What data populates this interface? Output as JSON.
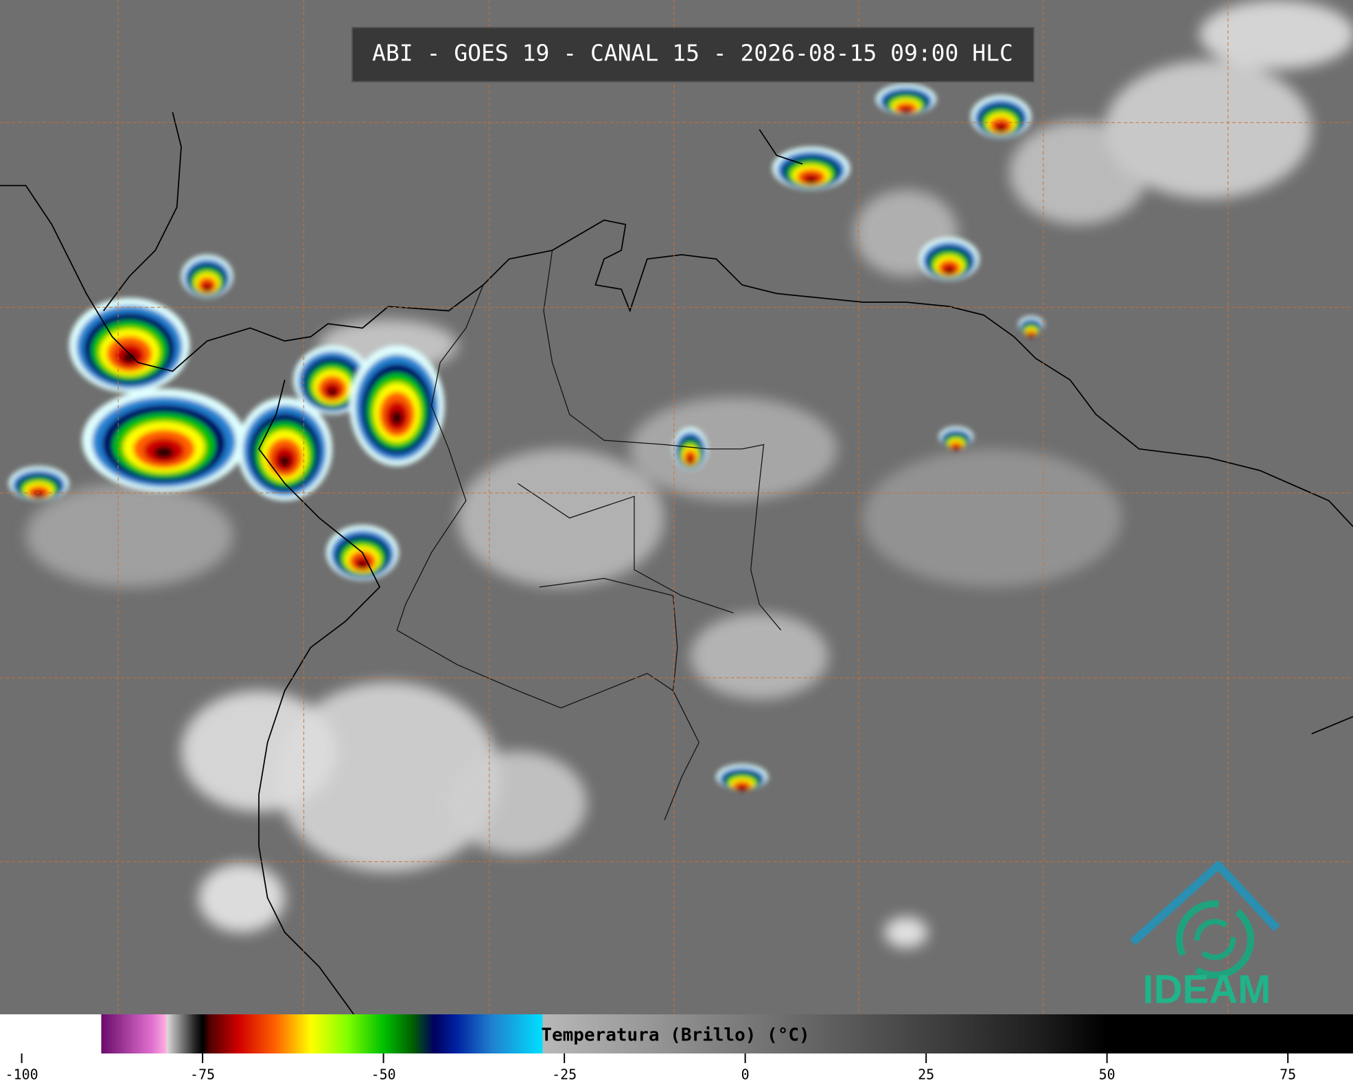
{
  "title": "ABI - GOES 19 - CANAL 15 - 2026-08-15 09:00 HLC",
  "logo": "IDEAM",
  "colorbar": {
    "label": "Temperatura (Brillo) (°C)",
    "xlim": [
      -103,
      84
    ],
    "ticks": [
      -100,
      -75,
      -50,
      -25,
      0,
      25,
      50,
      75
    ],
    "colormap": [
      {
        "value": -103,
        "color": "#ffffff"
      },
      {
        "value": -89,
        "color": "#ffffff"
      },
      {
        "value": -89,
        "color": "#6a0a6a"
      },
      {
        "value": -82,
        "color": "#e070d0"
      },
      {
        "value": -80,
        "color": "#ffb0e0"
      },
      {
        "value": -80,
        "color": "#dddddd"
      },
      {
        "value": -76,
        "color": "#222222"
      },
      {
        "value": -75,
        "color": "#000000"
      },
      {
        "value": -74,
        "color": "#500000"
      },
      {
        "value": -70,
        "color": "#d00000"
      },
      {
        "value": -65,
        "color": "#ff6000"
      },
      {
        "value": -60,
        "color": "#ffff00"
      },
      {
        "value": -55,
        "color": "#80ff00"
      },
      {
        "value": -50,
        "color": "#00c000"
      },
      {
        "value": -46,
        "color": "#006000"
      },
      {
        "value": -43,
        "color": "#000060"
      },
      {
        "value": -40,
        "color": "#0020a0"
      },
      {
        "value": -35,
        "color": "#2080d0"
      },
      {
        "value": -28,
        "color": "#00e0ff"
      },
      {
        "value": -28,
        "color": "#b8b8b8"
      },
      {
        "value": 40,
        "color": "#202020"
      },
      {
        "value": 50,
        "color": "#000000"
      },
      {
        "value": 84,
        "color": "#000000"
      }
    ]
  }
}
